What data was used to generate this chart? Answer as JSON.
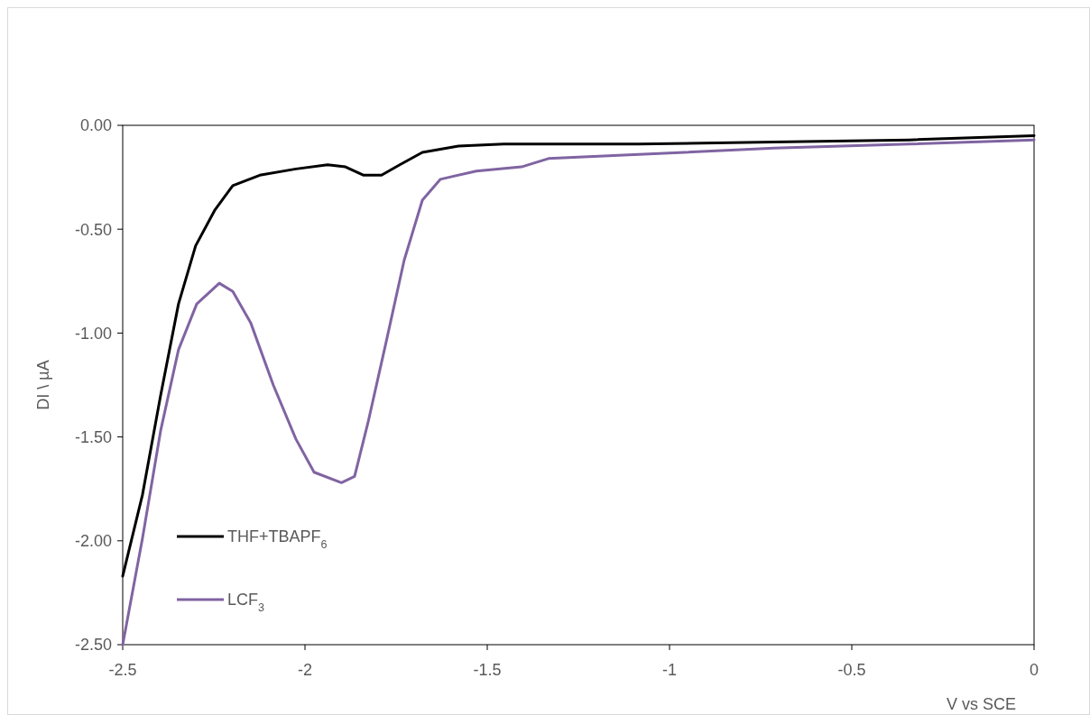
{
  "chart_data": {
    "type": "line",
    "xlabel": "V vs SCE",
    "ylabel": "DI \\ µA",
    "xlim": [
      -2.5,
      0
    ],
    "xticks": [
      -2.5,
      -2,
      -1.5,
      -1,
      -0.5,
      0
    ],
    "ylim": [
      -2.5,
      0
    ],
    "yticks": [
      {
        "value": -2.5,
        "label": "-2.50"
      },
      {
        "value": -2,
        "label": "-2.00"
      },
      {
        "value": -1.5,
        "label": "-1.50"
      },
      {
        "value": -1,
        "label": "-1.00"
      },
      {
        "value": -0.5,
        "label": "-0.50"
      },
      {
        "value": 0,
        "label": "0.00"
      }
    ],
    "grid": false,
    "legend": "bottom left",
    "marker": "none",
    "line_style": "solid",
    "series": [
      {
        "name": "THF+TBAPF$_{6}$",
        "color": "#000000",
        "x": [
          -2.5,
          -2.446,
          -2.396,
          -2.347,
          -2.3,
          -2.248,
          -2.198,
          -2.124,
          -2.025,
          -1.938,
          -1.889,
          -1.839,
          -1.79,
          -1.74,
          -1.678,
          -1.579,
          -1.455,
          -1.084,
          -0.713,
          -0.342,
          0
        ],
        "values": [
          -2.17,
          -1.78,
          -1.3,
          -0.86,
          -0.58,
          -0.41,
          -0.29,
          -0.24,
          -0.21,
          -0.19,
          -0.2,
          -0.24,
          -0.24,
          -0.19,
          -0.13,
          -0.1,
          -0.09,
          -0.09,
          -0.08,
          -0.07,
          -0.05
        ]
      },
      {
        "name": "LCF$_{3}$",
        "color": "#8064a2",
        "x": [
          -2.5,
          -2.446,
          -2.396,
          -2.347,
          -2.297,
          -2.235,
          -2.198,
          -2.149,
          -2.087,
          -2.025,
          -1.975,
          -1.9,
          -1.864,
          -1.827,
          -1.777,
          -1.728,
          -1.678,
          -1.629,
          -1.53,
          -1.406,
          -1.332,
          -1.084,
          -0.713,
          -0.342,
          0
        ],
        "values": [
          -2.5,
          -1.99,
          -1.47,
          -1.08,
          -0.86,
          -0.76,
          -0.8,
          -0.95,
          -1.25,
          -1.51,
          -1.67,
          -1.72,
          -1.69,
          -1.43,
          -1.04,
          -0.65,
          -0.36,
          -0.26,
          -0.22,
          -0.2,
          -0.16,
          -0.14,
          -0.11,
          -0.09,
          -0.07
        ]
      }
    ]
  }
}
